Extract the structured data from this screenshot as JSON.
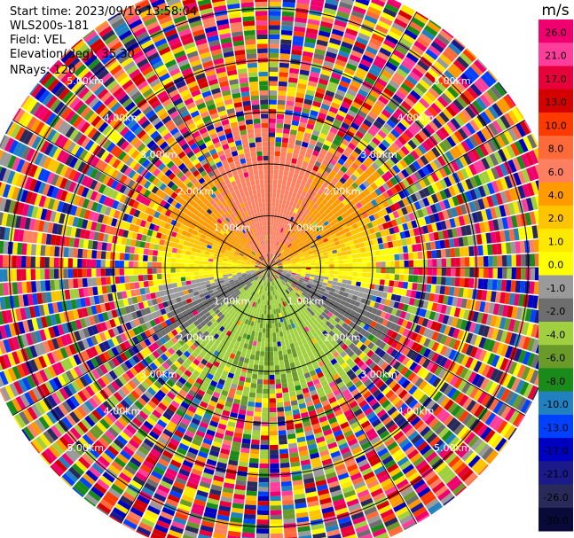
{
  "header": {
    "start_time": "Start time: 2023/09/16 13:58:04",
    "instrument": "WLS200s-181",
    "field": "Field: VEL",
    "elevation": "Elevation(deg): 35.30",
    "nrays": "NRays: 120"
  },
  "colorbar": {
    "unit": "m/s",
    "ticks": [
      "26.0",
      "21.0",
      "17.0",
      "13.0",
      "10.0",
      "8.0",
      "6.0",
      "4.0",
      "2.0",
      "1.0",
      "0.0",
      "-1.0",
      "-2.0",
      "-4.0",
      "-6.0",
      "-8.0",
      "-10.0",
      "-13.0",
      "-17.0",
      "-21.0",
      "-26.0",
      "-30.0"
    ],
    "colors": [
      "#f0006e",
      "#ff3d9a",
      "#e8003a",
      "#d40000",
      "#ff3a00",
      "#ff6a3a",
      "#ff8060",
      "#ff9a00",
      "#ffc400",
      "#ffe800",
      "#ffff00",
      "#9a9a9a",
      "#6e6e6e",
      "#a0d040",
      "#6a9a2a",
      "#1a8a1a",
      "#2080c0",
      "#0040ff",
      "#0000c0",
      "#1a1a8a",
      "#2a2a5a",
      "#0a0a3a"
    ]
  },
  "chart_data": {
    "type": "heatmap",
    "subtype": "polar-ppi",
    "field": "VEL",
    "nrays": 120,
    "range_rings_km": [
      1.0,
      2.0,
      3.0,
      4.0,
      5.0
    ],
    "range_labels": [
      "1.00km",
      "2.00km",
      "3.00km",
      "4.00km",
      "5.00km"
    ],
    "max_range_km": 5.7,
    "clean_range_km": 2.0,
    "radial_lines_deg": [
      0,
      30,
      60,
      90,
      120,
      150,
      180,
      210,
      240,
      270,
      300,
      330
    ],
    "pattern": {
      "north_sector_ms": 3.5,
      "south_sector_ms": -5.0,
      "zero_line_bearing_deg": 90,
      "outer_region": "random noise across full color scale"
    },
    "colorbar_range": [
      -30.0,
      26.0
    ],
    "unit": "m/s"
  }
}
